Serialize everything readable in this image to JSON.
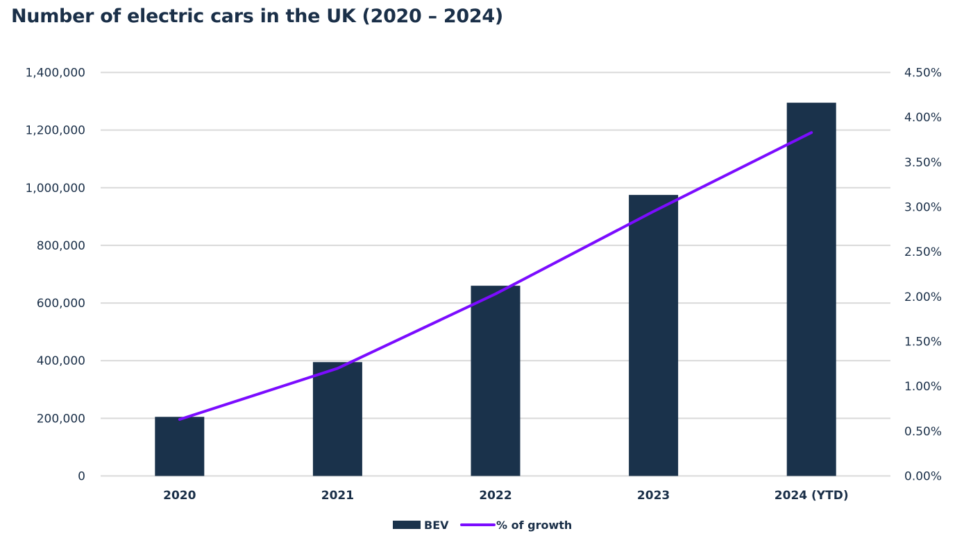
{
  "chart_data": {
    "type": "bar",
    "title": "Number of electric cars in the UK (2020 – 2024)",
    "categories": [
      "2020",
      "2021",
      "2022",
      "2023",
      "2024 (YTD)"
    ],
    "series": [
      {
        "name": "BEV",
        "type": "bar",
        "axis": "left",
        "color": "#1a324b",
        "values": [
          205000,
          395000,
          660000,
          975000,
          1295000
        ]
      },
      {
        "name": "% of growth",
        "type": "line",
        "axis": "right",
        "color": "#7b0cff",
        "values": [
          0.63,
          1.2,
          2.03,
          2.95,
          3.83
        ]
      }
    ],
    "y_left": {
      "range": [
        0,
        1400000
      ],
      "ticks": [
        "0",
        "200,000",
        "400,000",
        "600,000",
        "800,000",
        "1,000,000",
        "1,200,000",
        "1,400,000"
      ]
    },
    "y_right": {
      "range": [
        0,
        4.5
      ],
      "ticks": [
        "0.00%",
        "0.50%",
        "1.00%",
        "1.50%",
        "2.00%",
        "2.50%",
        "3.00%",
        "3.50%",
        "4.00%",
        "4.50%"
      ]
    },
    "grid": true,
    "legend": "bottom-center",
    "legend_labels": [
      "BEV",
      "% of growth"
    ]
  }
}
